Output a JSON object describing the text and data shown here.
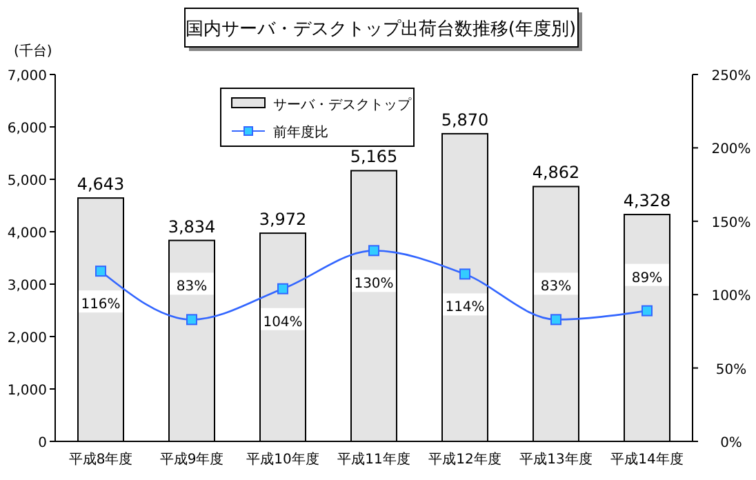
{
  "chart_data": {
    "type": "bar",
    "title": "国内サーバ・デスクトップ出荷台数推移(年度別)",
    "ylabel": "(千台)",
    "categories": [
      "平成8年度",
      "平成9年度",
      "平成10年度",
      "平成11年度",
      "平成12年度",
      "平成13年度",
      "平成14年度"
    ],
    "series": [
      {
        "name": "サーバ・デスクトップ",
        "color": "#e4e4e4",
        "values": [
          4643,
          3834,
          3972,
          5165,
          5870,
          4862,
          4328
        ],
        "value_labels": [
          "4,643",
          "3,834",
          "3,972",
          "5,165",
          "5,870",
          "4,862",
          "4,328"
        ]
      },
      {
        "name": "前年度比",
        "type": "line",
        "axis": "y2",
        "color": "#3366ff",
        "values": [
          116,
          83,
          104,
          130,
          114,
          83,
          89
        ],
        "value_labels": [
          "116%",
          "83%",
          "104%",
          "130%",
          "114%",
          "83%",
          "89%"
        ]
      }
    ],
    "ylim": [
      0,
      7000
    ],
    "yticks": [
      {
        "value": 0,
        "label": "0"
      },
      {
        "value": 1000,
        "label": "1,000"
      },
      {
        "value": 2000,
        "label": "2,000"
      },
      {
        "value": 3000,
        "label": "3,000"
      },
      {
        "value": 4000,
        "label": "4,000"
      },
      {
        "value": 5000,
        "label": "5,000"
      },
      {
        "value": 6000,
        "label": "6,000"
      },
      {
        "value": 7000,
        "label": "7,000"
      }
    ],
    "y2lim": [
      0,
      250
    ],
    "y2ticks": [
      {
        "value": 0,
        "label": "0%"
      },
      {
        "value": 50,
        "label": "50%"
      },
      {
        "value": 100,
        "label": "100%"
      },
      {
        "value": 150,
        "label": "150%"
      },
      {
        "value": 200,
        "label": "200%"
      },
      {
        "value": 250,
        "label": "250%"
      }
    ],
    "legend": "top",
    "marker": "square",
    "grid": false
  }
}
